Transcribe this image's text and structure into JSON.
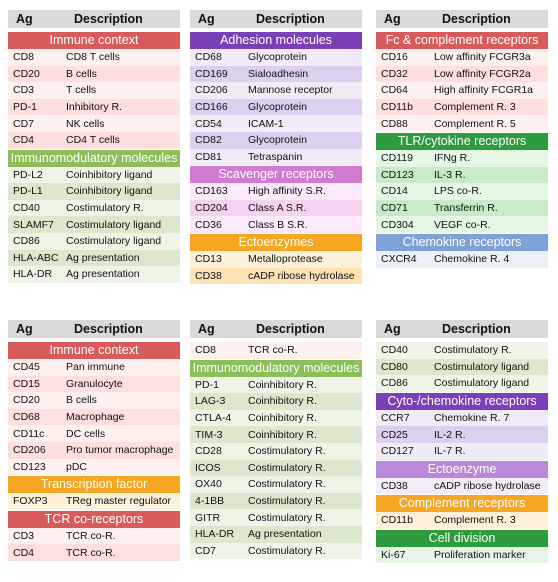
{
  "colors": {
    "red": {
      "header": "#d85b5b",
      "rowA": "#ffdede",
      "rowB": "#fff0f0"
    },
    "purple": {
      "header": "#7b3fb7",
      "rowA": "#ddd0ee",
      "rowB": "#f1ebf8"
    },
    "green": {
      "header": "#8cbe5a",
      "rowA": "#dbe8cd",
      "rowB": "#eef5e6"
    },
    "pink": {
      "header": "#d07ad0",
      "rowA": "#f3d3ef",
      "rowB": "#faeafa"
    },
    "orange": {
      "header": "#f5a623",
      "rowA": "#fde2b5",
      "rowB": "#fef1da"
    },
    "dgreen": {
      "header": "#2e9b3e",
      "rowA": "#c7ebc8",
      "rowB": "#e5f6e5"
    },
    "blue": {
      "header": "#7ea1d6",
      "rowA": "#d6e2f2",
      "rowB": "#ebf1f9"
    },
    "lightpurple": {
      "header": "#b988d7",
      "rowA": "#e6d6f1",
      "rowB": "#f3ebf8"
    }
  },
  "panels": [
    {
      "id": "p1",
      "col_header": {
        "ag": "Ag",
        "desc": "Description"
      },
      "sections": [
        {
          "title": "Immune context",
          "color": "red",
          "rows": [
            [
              "CD8",
              "CD8 T cells"
            ],
            [
              "CD20",
              "B cells"
            ],
            [
              "CD3",
              "T cells"
            ],
            [
              "PD-1",
              "Inhibitory R."
            ],
            [
              "CD7",
              "NK cells"
            ],
            [
              "CD4",
              "CD4 T cells"
            ]
          ]
        },
        {
          "title": "Immunomodulatory molecules",
          "color": "green",
          "rows": [
            [
              "PD-L2",
              "Coinhibitory ligand"
            ],
            [
              "PD-L1",
              "Coinhibitory ligand"
            ],
            [
              "CD40",
              "Costimulatory R."
            ],
            [
              "SLAMF7",
              "Costimulatory ligand"
            ],
            [
              "CD86",
              "Costimulatory ligand"
            ],
            [
              "HLA-ABC",
              "Ag presentation"
            ],
            [
              "HLA-DR",
              "Ag presentation"
            ]
          ]
        }
      ]
    },
    {
      "id": "p2",
      "col_header": {
        "ag": "Ag",
        "desc": "Description"
      },
      "sections": [
        {
          "title": "Adhesion molecules",
          "color": "purple",
          "rows": [
            [
              "CD68",
              "Glycoprotein"
            ],
            [
              "CD169",
              "Sialoadhesin"
            ],
            [
              "CD206",
              "Mannose receptor"
            ],
            [
              "CD166",
              "Glycoprotein"
            ],
            [
              "CD54",
              "ICAM-1"
            ],
            [
              "CD82",
              "Glycoprotein"
            ],
            [
              "CD81",
              "Tetraspanin"
            ]
          ]
        },
        {
          "title": "Scavenger receptors",
          "color": "pink",
          "rows": [
            [
              "CD163",
              "High affinity S.R."
            ],
            [
              "CD204",
              "Class A S.R."
            ],
            [
              "CD36",
              "Class B S.R."
            ]
          ]
        },
        {
          "title": "Ectoenzymes",
          "color": "orange",
          "rows": [
            [
              "CD13",
              "Metalloprotease"
            ],
            [
              "CD38",
              "cADP ribose hydrolase"
            ]
          ]
        }
      ]
    },
    {
      "id": "p3",
      "col_header": {
        "ag": "Ag",
        "desc": "Description"
      },
      "sections": [
        {
          "title": "Fc & complement receptors",
          "color": "red",
          "rows": [
            [
              "CD16",
              "Low affinity FCGR3a"
            ],
            [
              "CD32",
              "Low affinity FCGR2a"
            ],
            [
              "CD64",
              "High affinity FCGR1a"
            ],
            [
              "CD11b",
              "Complement R. 3"
            ],
            [
              "CD88",
              "Complement R. 5"
            ]
          ]
        },
        {
          "title": "TLR/cytokine receptors",
          "color": "dgreen",
          "rows": [
            [
              "CD119",
              "IFNg R."
            ],
            [
              "CD123",
              "IL-3 R."
            ],
            [
              "CD14",
              "LPS co-R."
            ],
            [
              "CD71",
              "Transferrin R."
            ],
            [
              "CD304",
              "VEGF co-R."
            ]
          ]
        },
        {
          "title": "Chemokine receptors",
          "color": "blue",
          "rows": [
            [
              "CXCR4",
              "Chemokine R. 4"
            ]
          ]
        }
      ]
    },
    {
      "id": "p4",
      "col_header": {
        "ag": "Ag",
        "desc": "Description"
      },
      "sections": [
        {
          "title": "Immune context",
          "color": "red",
          "rows": [
            [
              "CD45",
              "Pan immune"
            ],
            [
              "CD15",
              "Granulocyte"
            ],
            [
              "CD20",
              "B cells"
            ],
            [
              "CD68",
              "Macrophage"
            ],
            [
              "CD11c",
              "DC cells"
            ],
            [
              "CD206",
              "Pro tumor macrophage"
            ],
            [
              "CD123",
              "pDC"
            ]
          ]
        },
        {
          "title": "Transcription factor",
          "color": "orange",
          "rows": [
            [
              "FOXP3",
              "TReg master regulator"
            ]
          ]
        },
        {
          "title": "TCR co-receptors",
          "color": "red",
          "rows": [
            [
              "CD3",
              "TCR co-R."
            ],
            [
              "CD4",
              "TCR co-R."
            ]
          ]
        }
      ]
    },
    {
      "id": "p5",
      "col_header": {
        "ag": "Ag",
        "desc": "Description"
      },
      "sections": [
        {
          "title": "",
          "color": "red",
          "rows": [
            [
              "CD8",
              "TCR co-R."
            ]
          ]
        },
        {
          "title": "Immunomodulatory molecules",
          "color": "green",
          "rows": [
            [
              "PD-1",
              "Coinhibitory R."
            ],
            [
              "LAG-3",
              "Coinhibitory R."
            ],
            [
              "CTLA-4",
              "Coinhibitory R."
            ],
            [
              "TIM-3",
              "Coinhibitory R."
            ],
            [
              "CD28",
              "Costimulatory R."
            ],
            [
              "ICOS",
              "Costimulatory R."
            ],
            [
              "OX40",
              "Costimulatory R."
            ],
            [
              "4-1BB",
              "Costimulatory R."
            ],
            [
              "GITR",
              "Costimulatory R."
            ],
            [
              "HLA-DR",
              "Ag presentation"
            ],
            [
              "CD7",
              "Costimulatory R."
            ]
          ]
        }
      ]
    },
    {
      "id": "p6",
      "col_header": {
        "ag": "Ag",
        "desc": "Description"
      },
      "sections": [
        {
          "title": "",
          "color": "green",
          "rows": [
            [
              "CD40",
              "Costimulatory R."
            ],
            [
              "CD80",
              "Costimulatory ligand"
            ],
            [
              "CD86",
              "Costimulatory ligand"
            ]
          ]
        },
        {
          "title": "Cyto-/chemokine receptors",
          "color": "purple",
          "rows": [
            [
              "CCR7",
              "Chemokine R. 7"
            ],
            [
              "CD25",
              "IL-2 R."
            ],
            [
              "CD127",
              "IL-7 R."
            ]
          ]
        },
        {
          "title": "Ectoenzyme",
          "color": "lightpurple",
          "rows": [
            [
              "CD38",
              "cADP ribose hydrolase"
            ]
          ]
        },
        {
          "title": "Complement receptors",
          "color": "orange",
          "rows": [
            [
              "CD11b",
              "Complement R. 3"
            ]
          ]
        },
        {
          "title": "Cell division",
          "color": "dgreen",
          "rows": [
            [
              "Ki-67",
              "Proliferation marker"
            ]
          ]
        }
      ]
    }
  ]
}
